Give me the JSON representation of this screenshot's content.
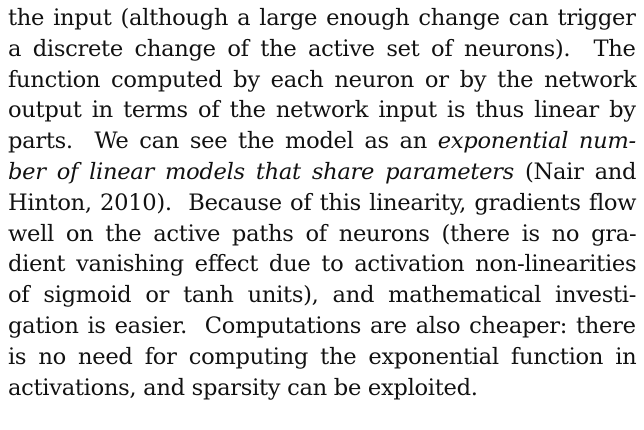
{
  "paragraph": {
    "lines": [
      [
        {
          "text": "the input (although a large enough change can trigger",
          "italic": false
        }
      ],
      [
        {
          "text": "a discrete change of the active set of neurons).  The",
          "italic": false
        }
      ],
      [
        {
          "text": "function computed by each neuron or by the network",
          "italic": false
        }
      ],
      [
        {
          "text": "output in terms of the network input is thus linear by",
          "italic": false
        }
      ],
      [
        {
          "text": "parts.  We can see the model as an ",
          "italic": false
        },
        {
          "text": "exponential num-",
          "italic": true
        }
      ],
      [
        {
          "text": "ber of linear models that share parameters",
          "italic": true
        },
        {
          "text": " (Nair and",
          "italic": false
        }
      ],
      [
        {
          "text": "Hinton, 2010).  Because of this linearity, gradients flow",
          "italic": false
        }
      ],
      [
        {
          "text": "well on the active paths of neurons (there is no gra-",
          "italic": false
        }
      ],
      [
        {
          "text": "dient vanishing effect due to activation non-linearities",
          "italic": false
        }
      ],
      [
        {
          "text": "of sigmoid or tanh units), and mathematical investi-",
          "italic": false
        }
      ],
      [
        {
          "text": "gation is easier.  Computations are also cheaper: there",
          "italic": false
        }
      ],
      [
        {
          "text": "is no need for computing the exponential function in",
          "italic": false
        }
      ],
      [
        {
          "text": "activations, and sparsity can be exploited.",
          "italic": false
        }
      ]
    ]
  }
}
